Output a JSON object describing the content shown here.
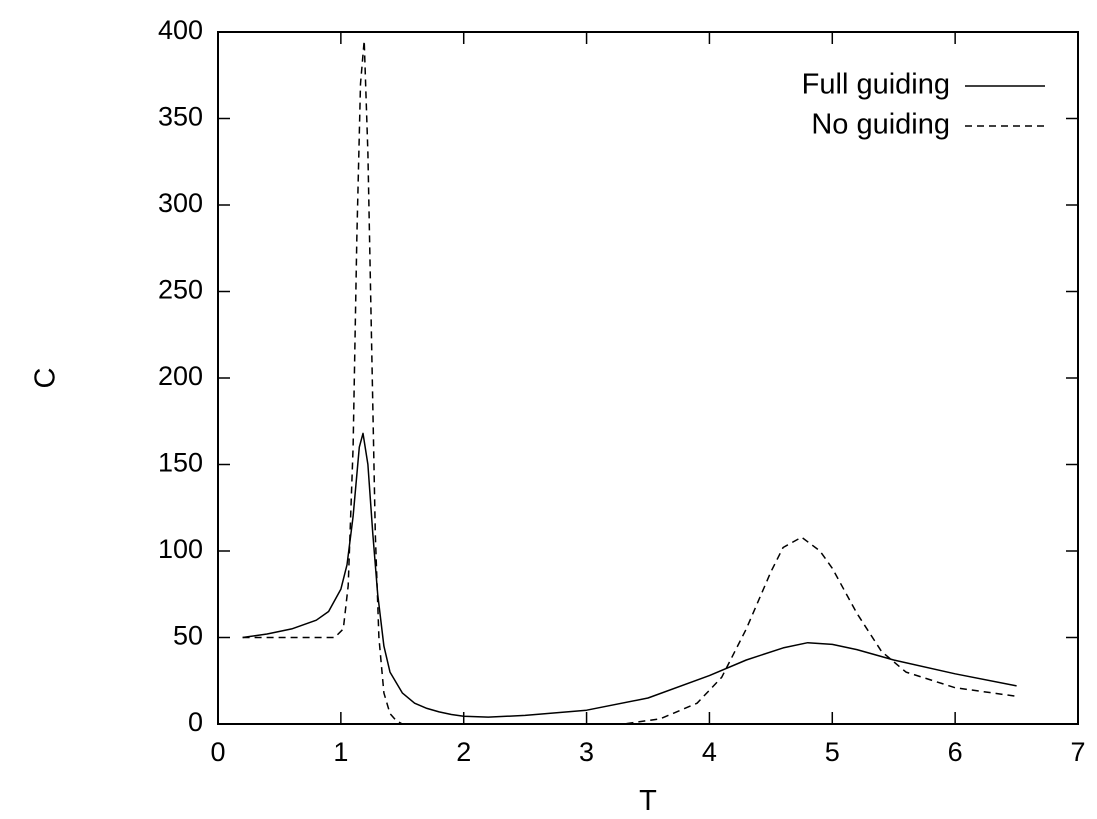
{
  "chart_data": {
    "type": "line",
    "title": "",
    "xlabel": "T",
    "ylabel": "C",
    "xlim": [
      0,
      7
    ],
    "ylim": [
      0,
      400
    ],
    "xticks": [
      0,
      1,
      2,
      3,
      4,
      5,
      6,
      7
    ],
    "yticks": [
      0,
      50,
      100,
      150,
      200,
      250,
      300,
      350,
      400
    ],
    "grid": false,
    "legend_position": "top-right",
    "series": [
      {
        "name": "Full guiding",
        "style": "solid",
        "x": [
          0.2,
          0.4,
          0.6,
          0.8,
          0.9,
          1.0,
          1.05,
          1.1,
          1.15,
          1.18,
          1.22,
          1.26,
          1.3,
          1.35,
          1.4,
          1.5,
          1.6,
          1.7,
          1.8,
          1.9,
          2.0,
          2.2,
          2.5,
          3.0,
          3.5,
          4.0,
          4.3,
          4.6,
          4.8,
          5.0,
          5.2,
          5.5,
          6.0,
          6.5
        ],
        "y": [
          50,
          52,
          55,
          60,
          65,
          78,
          92,
          120,
          160,
          168,
          150,
          110,
          75,
          45,
          30,
          18,
          12,
          9,
          7,
          5.5,
          4.5,
          4,
          5,
          8,
          15,
          28,
          37,
          44,
          47,
          46,
          43,
          37,
          29,
          22
        ]
      },
      {
        "name": "No guiding",
        "style": "dashed",
        "x": [
          0.2,
          0.5,
          0.8,
          0.95,
          1.02,
          1.06,
          1.1,
          1.13,
          1.16,
          1.19,
          1.22,
          1.25,
          1.28,
          1.31,
          1.35,
          1.4,
          1.45,
          1.5,
          2.0,
          3.0,
          3.3,
          3.6,
          3.9,
          4.1,
          4.3,
          4.5,
          4.6,
          4.75,
          4.9,
          5.0,
          5.2,
          5.4,
          5.6,
          6.0,
          6.5
        ],
        "y": [
          50,
          50,
          50,
          50,
          55,
          80,
          160,
          280,
          370,
          395,
          330,
          220,
          110,
          50,
          18,
          6,
          2,
          0,
          0,
          0,
          0,
          3,
          12,
          27,
          55,
          88,
          102,
          108,
          100,
          90,
          64,
          42,
          30,
          21,
          16
        ]
      }
    ]
  }
}
